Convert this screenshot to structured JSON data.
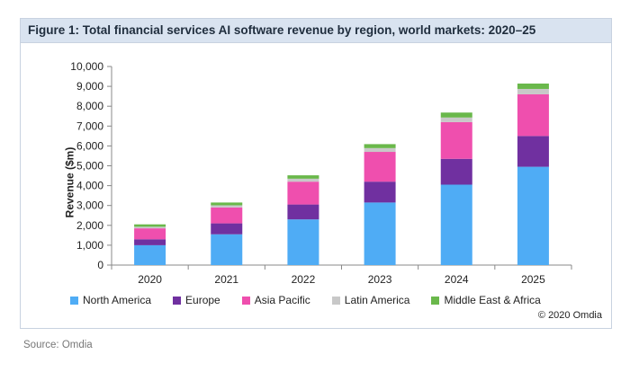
{
  "figure": {
    "title": "Figure 1: Total financial services AI software revenue by region, world markets: 2020–25",
    "copyright": "© 2020 Omdia"
  },
  "source": "Source: Omdia",
  "chart_data": {
    "type": "bar",
    "stacked": true,
    "categories": [
      "2020",
      "2021",
      "2022",
      "2023",
      "2024",
      "2025"
    ],
    "ylabel": "Revenue ($m)",
    "xlabel": "",
    "ylim": [
      0,
      10000
    ],
    "yticks": [
      0,
      1000,
      2000,
      3000,
      4000,
      5000,
      6000,
      7000,
      8000,
      9000,
      10000
    ],
    "ytick_labels": [
      "0",
      "1,000",
      "2,000",
      "3,000",
      "4,000",
      "5,000",
      "6,000",
      "7,000",
      "8,000",
      "9,000",
      "10,000"
    ],
    "legend_position": "bottom",
    "series": [
      {
        "name": "North America",
        "color": "#4facf5",
        "values": [
          1000,
          1550,
          2300,
          3150,
          4050,
          4950
        ]
      },
      {
        "name": "Europe",
        "color": "#7030a0",
        "values": [
          300,
          550,
          750,
          1050,
          1300,
          1550
        ]
      },
      {
        "name": "Asia Pacific",
        "color": "#ef4fae",
        "values": [
          550,
          800,
          1150,
          1500,
          1850,
          2100
        ]
      },
      {
        "name": "Latin America",
        "color": "#c8c8c8",
        "values": [
          80,
          110,
          150,
          190,
          230,
          270
        ]
      },
      {
        "name": "Middle East & Africa",
        "color": "#6ab84b",
        "values": [
          120,
          140,
          170,
          200,
          250,
          270
        ]
      }
    ]
  }
}
